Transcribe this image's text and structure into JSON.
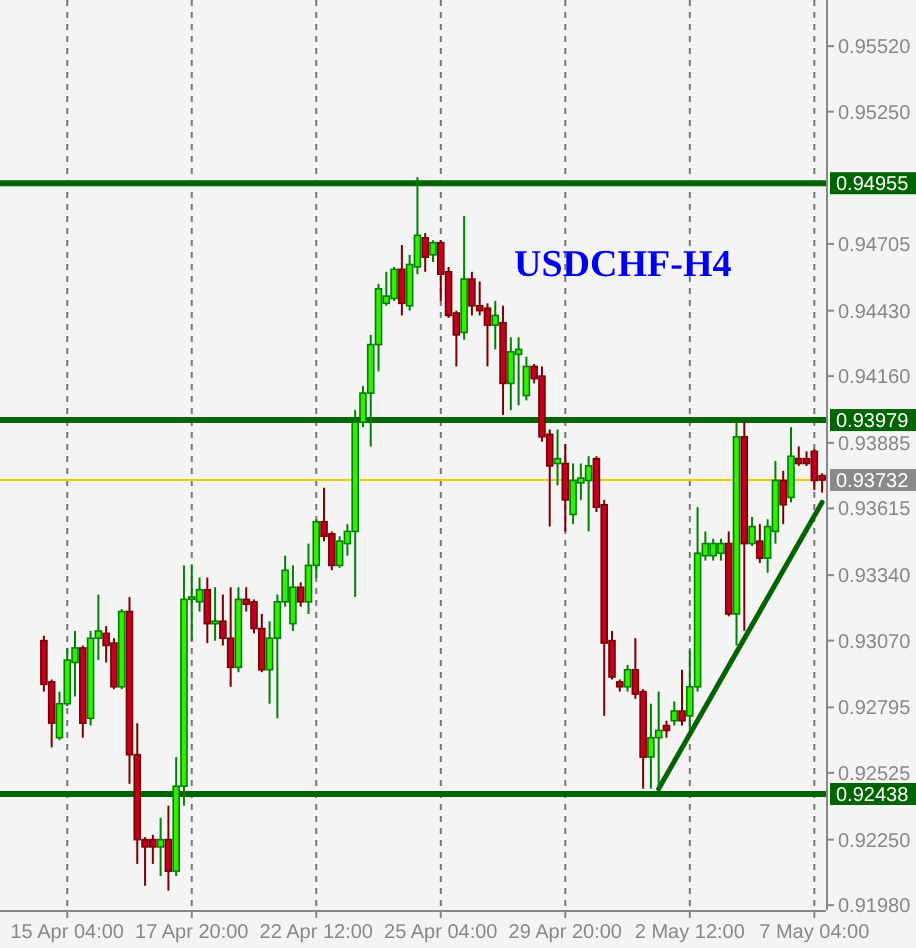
{
  "chart_data": {
    "type": "candlestick",
    "title": "USDCHF-H4",
    "categories": [
      null,
      null,
      null,
      "15 Apr 04:00",
      null,
      null,
      null,
      null,
      null,
      null,
      null,
      null,
      null,
      null,
      null,
      null,
      null,
      null,
      null,
      "17 Apr 20:00",
      null,
      null,
      null,
      null,
      null,
      null,
      null,
      null,
      null,
      null,
      null,
      null,
      null,
      null,
      null,
      "22 Apr 12:00",
      null,
      null,
      null,
      null,
      null,
      null,
      null,
      null,
      null,
      null,
      null,
      null,
      null,
      null,
      null,
      "25 Apr 04:00",
      null,
      null,
      null,
      null,
      null,
      null,
      null,
      null,
      null,
      null,
      null,
      null,
      null,
      null,
      null,
      "29 Apr 20:00",
      null,
      null,
      null,
      null,
      null,
      null,
      null,
      null,
      null,
      null,
      null,
      null,
      null,
      null,
      null,
      "2 May 12:00",
      null,
      null,
      null,
      null,
      null,
      null,
      null,
      null,
      null,
      null,
      null,
      null,
      null,
      null,
      null,
      "7 May 04:00",
      null
    ],
    "ohlc": [
      [
        0.9307,
        0.9309,
        0.9286,
        0.9289
      ],
      [
        0.929,
        0.9291,
        0.9263,
        0.9273
      ],
      [
        0.9267,
        0.9286,
        0.9266,
        0.9281
      ],
      [
        0.9281,
        0.9304,
        0.928,
        0.9299
      ],
      [
        0.9298,
        0.9311,
        0.9284,
        0.9304
      ],
      [
        0.9304,
        0.9305,
        0.9267,
        0.9273
      ],
      [
        0.9275,
        0.9311,
        0.9272,
        0.9308
      ],
      [
        0.9308,
        0.9326,
        0.9299,
        0.9311
      ],
      [
        0.931,
        0.9313,
        0.9298,
        0.9305
      ],
      [
        0.9306,
        0.9308,
        0.9287,
        0.9288
      ],
      [
        0.9288,
        0.932,
        0.9287,
        0.9319
      ],
      [
        0.9319,
        0.9325,
        0.9248,
        0.926
      ],
      [
        0.926,
        0.9273,
        0.9215,
        0.9225
      ],
      [
        0.9225,
        0.9226,
        0.9206,
        0.9222
      ],
      [
        0.9225,
        0.9227,
        0.9215,
        0.9222
      ],
      [
        0.9222,
        0.9234,
        0.921,
        0.9225
      ],
      [
        0.9225,
        0.9239,
        0.9204,
        0.9212
      ],
      [
        0.9212,
        0.9259,
        0.921,
        0.9247
      ],
      [
        0.9247,
        0.9338,
        0.9239,
        0.9324
      ],
      [
        0.9324,
        0.9338,
        0.9307,
        0.9325
      ],
      [
        0.9323,
        0.9333,
        0.9319,
        0.9328
      ],
      [
        0.9328,
        0.9333,
        0.9306,
        0.9314
      ],
      [
        0.9314,
        0.9329,
        0.9307,
        0.9315
      ],
      [
        0.9315,
        0.9326,
        0.9305,
        0.9308
      ],
      [
        0.9308,
        0.9329,
        0.9288,
        0.9296
      ],
      [
        0.9296,
        0.9329,
        0.9294,
        0.9324
      ],
      [
        0.9324,
        0.9329,
        0.9319,
        0.9322
      ],
      [
        0.9323,
        0.9324,
        0.931,
        0.9312
      ],
      [
        0.9312,
        0.9318,
        0.9294,
        0.9295
      ],
      [
        0.9295,
        0.9315,
        0.9281,
        0.9308
      ],
      [
        0.9308,
        0.9326,
        0.9275,
        0.9323
      ],
      [
        0.9323,
        0.9342,
        0.9321,
        0.9336
      ],
      [
        0.9314,
        0.9338,
        0.9311,
        0.9329
      ],
      [
        0.9329,
        0.9331,
        0.9321,
        0.9323
      ],
      [
        0.9323,
        0.9347,
        0.9318,
        0.9338
      ],
      [
        0.9338,
        0.9357,
        0.9333,
        0.9356
      ],
      [
        0.9356,
        0.937,
        0.9348,
        0.935
      ],
      [
        0.9351,
        0.9352,
        0.9336,
        0.9338
      ],
      [
        0.9338,
        0.935,
        0.9337,
        0.9348
      ],
      [
        0.9347,
        0.9355,
        0.9342,
        0.9352
      ],
      [
        0.9352,
        0.9402,
        0.9325,
        0.9397
      ],
      [
        0.9397,
        0.9412,
        0.9395,
        0.9409
      ],
      [
        0.9409,
        0.9433,
        0.9387,
        0.9429
      ],
      [
        0.9429,
        0.9454,
        0.9418,
        0.9452
      ],
      [
        0.9446,
        0.9459,
        0.9445,
        0.9449
      ],
      [
        0.9448,
        0.9461,
        0.9447,
        0.946
      ],
      [
        0.946,
        0.947,
        0.9441,
        0.9446
      ],
      [
        0.9445,
        0.9466,
        0.9443,
        0.9462
      ],
      [
        0.9461,
        0.9498,
        0.9458,
        0.9474
      ],
      [
        0.9473,
        0.9475,
        0.9459,
        0.9465
      ],
      [
        0.9466,
        0.9472,
        0.9463,
        0.9471
      ],
      [
        0.9471,
        0.9472,
        0.9447,
        0.9458
      ],
      [
        0.9459,
        0.9461,
        0.944,
        0.9441
      ],
      [
        0.9442,
        0.9443,
        0.942,
        0.9433
      ],
      [
        0.9434,
        0.9482,
        0.9431,
        0.9456
      ],
      [
        0.9456,
        0.9459,
        0.9441,
        0.9445
      ],
      [
        0.9445,
        0.9455,
        0.9441,
        0.9443
      ],
      [
        0.9444,
        0.9446,
        0.942,
        0.9437
      ],
      [
        0.9437,
        0.9447,
        0.9427,
        0.9441
      ],
      [
        0.9438,
        0.9445,
        0.94,
        0.9413
      ],
      [
        0.9413,
        0.9432,
        0.9402,
        0.9426
      ],
      [
        0.9425,
        0.9432,
        0.9404,
        0.9427
      ],
      [
        0.9408,
        0.9424,
        0.9406,
        0.942
      ],
      [
        0.942,
        0.9421,
        0.9413,
        0.9415
      ],
      [
        0.9416,
        0.942,
        0.9389,
        0.9391
      ],
      [
        0.9392,
        0.9394,
        0.9354,
        0.9379
      ],
      [
        0.938,
        0.9394,
        0.9371,
        0.9382
      ],
      [
        0.938,
        0.9388,
        0.9352,
        0.9365
      ],
      [
        0.9359,
        0.938,
        0.9355,
        0.9373
      ],
      [
        0.9372,
        0.938,
        0.9365,
        0.9374
      ],
      [
        0.9373,
        0.9383,
        0.9352,
        0.9379
      ],
      [
        0.9382,
        0.9383,
        0.936,
        0.9362
      ],
      [
        0.9363,
        0.9365,
        0.9276,
        0.9306
      ],
      [
        0.9307,
        0.9311,
        0.9291,
        0.9292
      ],
      [
        0.929,
        0.9291,
        0.9286,
        0.9288
      ],
      [
        0.9288,
        0.9297,
        0.9286,
        0.9295
      ],
      [
        0.9295,
        0.9308,
        0.9283,
        0.9285
      ],
      [
        0.9286,
        0.9287,
        0.9246,
        0.9259
      ],
      [
        0.9259,
        0.9281,
        0.9246,
        0.9267
      ],
      [
        0.9267,
        0.9286,
        0.9246,
        0.927
      ],
      [
        0.9272,
        0.9274,
        0.9267,
        0.927
      ],
      [
        0.9274,
        0.9282,
        0.9272,
        0.9278
      ],
      [
        0.9278,
        0.9295,
        0.9272,
        0.9274
      ],
      [
        0.9276,
        0.9303,
        0.927,
        0.9288
      ],
      [
        0.9288,
        0.9362,
        0.9286,
        0.9343
      ],
      [
        0.9342,
        0.9352,
        0.934,
        0.9347
      ],
      [
        0.9342,
        0.9349,
        0.934,
        0.9347
      ],
      [
        0.9343,
        0.9349,
        0.934,
        0.9347
      ],
      [
        0.9347,
        0.9352,
        0.9317,
        0.9318
      ],
      [
        0.9318,
        0.9397,
        0.9305,
        0.9391
      ],
      [
        0.9391,
        0.9397,
        0.9311,
        0.9347
      ],
      [
        0.9347,
        0.9358,
        0.9346,
        0.9354
      ],
      [
        0.9348,
        0.9355,
        0.9339,
        0.9341
      ],
      [
        0.9341,
        0.9357,
        0.9335,
        0.9354
      ],
      [
        0.9352,
        0.9381,
        0.9347,
        0.9373
      ],
      [
        0.9373,
        0.9377,
        0.9355,
        0.9363
      ],
      [
        0.9366,
        0.9395,
        0.9364,
        0.9383
      ],
      [
        0.9382,
        0.9387,
        0.9379,
        0.938
      ],
      [
        0.9382,
        0.9385,
        0.9379,
        0.938
      ],
      [
        0.9385,
        0.9386,
        0.9369,
        0.9373
      ],
      [
        0.9375,
        0.9376,
        0.9368,
        0.93732
      ]
    ],
    "series": [
      {
        "type": "line",
        "color": "#006400",
        "values": [
          null,
          null,
          null,
          null,
          null,
          null,
          null,
          null,
          null,
          null,
          null,
          null,
          null,
          null,
          null,
          null,
          null,
          null,
          null,
          null,
          null,
          null,
          null,
          null,
          null,
          null,
          null,
          null,
          null,
          null,
          null,
          null,
          null,
          null,
          null,
          null,
          null,
          null,
          null,
          null,
          null,
          null,
          null,
          null,
          null,
          null,
          null,
          null,
          null,
          null,
          null,
          null,
          null,
          null,
          null,
          null,
          null,
          null,
          null,
          null,
          null,
          null,
          null,
          null,
          null,
          null,
          null,
          null,
          null,
          null,
          null,
          null,
          null,
          null,
          null,
          null,
          null,
          null,
          null,
          0.9246,
          null,
          null,
          null,
          null,
          null,
          null,
          null,
          null,
          null,
          null,
          null,
          null,
          null,
          null,
          null,
          null,
          null,
          null,
          null,
          null,
          0.9364
        ]
      }
    ],
    "ylim": [
      0.9196,
      0.9571
    ],
    "yticks": [
      {
        "value": 0.9198,
        "label": "0.91980"
      },
      {
        "value": 0.9225,
        "label": "0.92250"
      },
      0.92525,
      0.92795,
      {
        "value": 0.9307,
        "label": "0.93070"
      },
      {
        "value": 0.9334,
        "label": "0.93340"
      },
      0.93615,
      0.93885,
      {
        "value": 0.9416,
        "label": "0.94160"
      },
      {
        "value": 0.9443,
        "label": "0.94430"
      },
      0.94705,
      {
        "value": 0.9525,
        "label": "0.95250"
      },
      {
        "value": 0.9552,
        "label": "0.95520"
      }
    ],
    "ref_lines": [
      {
        "axis": "y",
        "value": 0.94955,
        "label": "0.94955",
        "color": "#006400"
      },
      {
        "axis": "y",
        "value": 0.93979,
        "label": "0.93979",
        "color": "#006400"
      },
      {
        "axis": "y",
        "value": 0.92438,
        "label": "0.92438",
        "color": "#006400"
      },
      {
        "axis": "y",
        "value": 0.93732,
        "label": "0.93732",
        "color": "#f0c800"
      }
    ],
    "grid": "x"
  }
}
